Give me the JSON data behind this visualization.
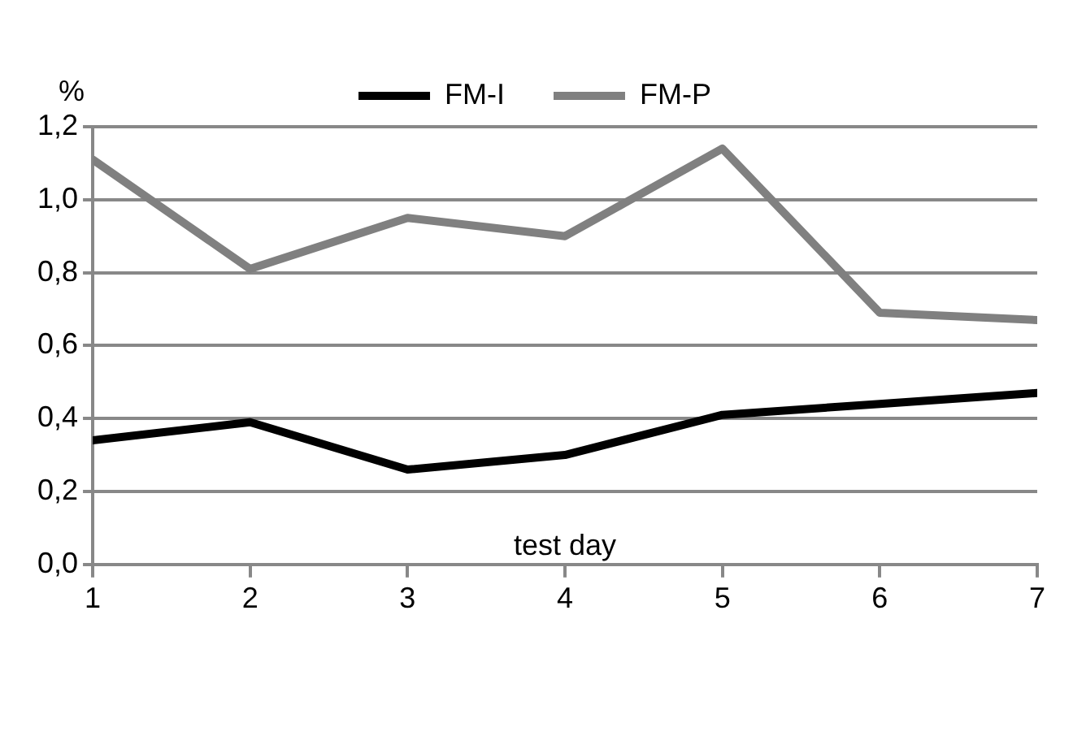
{
  "chart_data": {
    "type": "line",
    "xlabel": "test day",
    "ylabel": "%",
    "x": [
      1,
      2,
      3,
      4,
      5,
      6,
      7
    ],
    "series": [
      {
        "name": "FM-I",
        "color": "#000000",
        "values": [
          0.34,
          0.39,
          0.26,
          0.3,
          0.41,
          0.44,
          0.47
        ]
      },
      {
        "name": "FM-P",
        "color": "#808080",
        "values": [
          1.11,
          0.81,
          0.95,
          0.9,
          1.14,
          0.69,
          0.67
        ]
      }
    ],
    "xlim": [
      1,
      7
    ],
    "xticks": [
      1,
      2,
      3,
      4,
      5,
      6,
      7
    ],
    "ylim": [
      0,
      1.2
    ],
    "yticks": [
      {
        "value": 0,
        "label": "0,0"
      },
      {
        "value": 0.2,
        "label": "0,2"
      },
      {
        "value": 0.4,
        "label": "0,4"
      },
      {
        "value": 0.6,
        "label": "0,6"
      },
      {
        "value": 0.8,
        "label": "0,8"
      },
      {
        "value": 1.0,
        "label": "1,0"
      },
      {
        "value": 1.2,
        "label": "1,2"
      }
    ],
    "grid": "y",
    "legend": "top",
    "marker": "none",
    "line_style": "solid"
  }
}
